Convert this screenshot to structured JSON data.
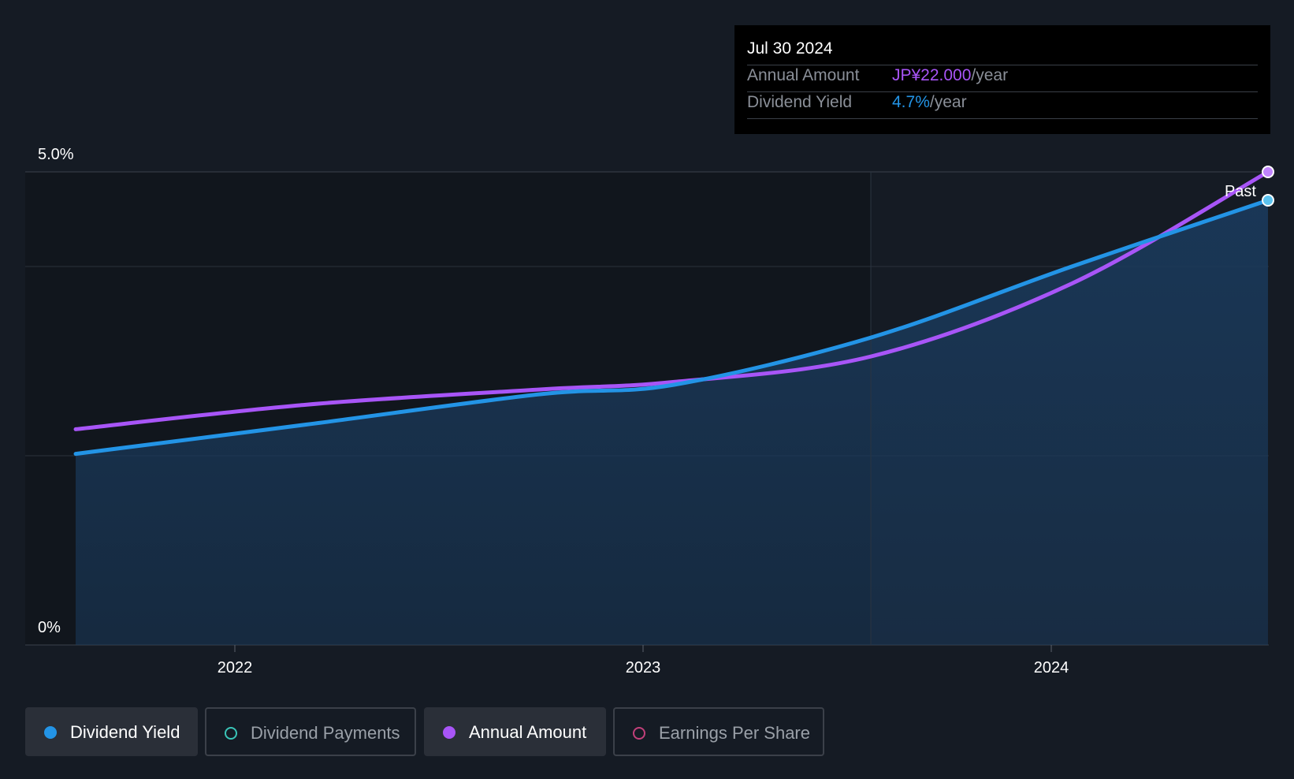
{
  "chart_data": {
    "type": "line",
    "x": [
      "2021-08-01",
      "2022-03-01",
      "2022-10-01",
      "2023-02-01",
      "2023-08-01",
      "2024-02-01",
      "2024-07-30"
    ],
    "series": [
      {
        "name": "Dividend Yield",
        "values": [
          2.02,
          2.33,
          2.65,
          2.75,
          3.25,
          4.0,
          4.7
        ],
        "color": "#2394e6",
        "fill": true
      },
      {
        "name": "Annual Amount",
        "values": [
          2.28,
          2.54,
          2.7,
          2.78,
          3.05,
          3.82,
          5.0
        ],
        "color": "#a855f7"
      }
    ],
    "ylim": [
      0,
      5.0
    ],
    "y_tick_labels": [
      "5.0%",
      "0%"
    ],
    "x_tick_labels": [
      "2022",
      "2023",
      "2024"
    ],
    "past_label": "Past",
    "grid": true,
    "theme": {
      "background": "#151b24",
      "fill_color": "#1a3a5c"
    }
  },
  "tooltip": {
    "date": "Jul 30 2024",
    "rows": [
      {
        "label": "Annual Amount",
        "value": "JP¥22.000",
        "unit": "/year",
        "color": "#a855f7"
      },
      {
        "label": "Dividend Yield",
        "value": "4.7%",
        "unit": "/year",
        "color": "#2394e6"
      }
    ]
  },
  "legend": {
    "items": [
      {
        "label": "Dividend Yield",
        "active": true,
        "dot_color": "#2394e6",
        "hollow": false
      },
      {
        "label": "Dividend Payments",
        "active": false,
        "dot_color": "#3ac5b8",
        "hollow": true
      },
      {
        "label": "Annual Amount",
        "active": true,
        "dot_color": "#a855f7",
        "hollow": false
      },
      {
        "label": "Earnings Per Share",
        "active": false,
        "dot_color": "#c2407a",
        "hollow": true
      }
    ]
  }
}
